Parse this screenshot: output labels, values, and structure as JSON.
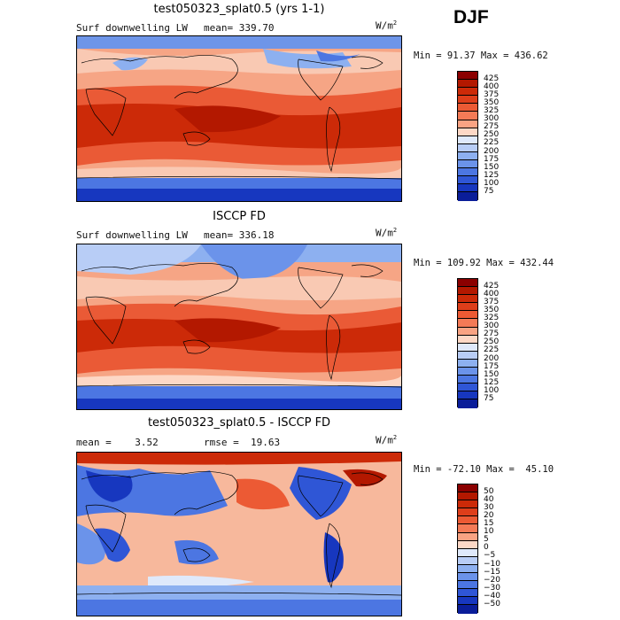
{
  "season": "DJF",
  "panels": [
    {
      "title": "test050323_splat0.5 (yrs 1-1)",
      "variable": "Surf downwelling LW",
      "stat1": "mean= 339.70",
      "stat2": "",
      "units": "W/m",
      "units_sup": "2",
      "minmax": "Min =  91.37 Max = 436.62",
      "levels": [
        "425",
        "400",
        "375",
        "350",
        "325",
        "300",
        "275",
        "250",
        "225",
        "200",
        "175",
        "150",
        "125",
        "100",
        "75"
      ],
      "colors": [
        "#8b0000",
        "#b31800",
        "#cc2a08",
        "#de3e1a",
        "#ec5a34",
        "#f47a56",
        "#f9a383",
        "#fdd8c6",
        "#dfe9fb",
        "#b8cdf6",
        "#8db0f0",
        "#6b93ea",
        "#4c76e2",
        "#2f56d6",
        "#1737bf",
        "#0a1d99"
      ]
    },
    {
      "title": "ISCCP FD",
      "variable": "Surf downwelling LW",
      "stat1": "mean= 336.18",
      "stat2": "",
      "units": "W/m",
      "units_sup": "2",
      "minmax": "Min = 109.92 Max = 432.44",
      "levels": [
        "425",
        "400",
        "375",
        "350",
        "325",
        "300",
        "275",
        "250",
        "225",
        "200",
        "175",
        "150",
        "125",
        "100",
        "75"
      ],
      "colors": [
        "#8b0000",
        "#b31800",
        "#cc2a08",
        "#de3e1a",
        "#ec5a34",
        "#f47a56",
        "#f9a383",
        "#fdd8c6",
        "#dfe9fb",
        "#b8cdf6",
        "#8db0f0",
        "#6b93ea",
        "#4c76e2",
        "#2f56d6",
        "#1737bf",
        "#0a1d99"
      ]
    },
    {
      "title": "test050323_splat0.5 - ISCCP FD",
      "variable": "",
      "stat1": "mean =    3.52",
      "stat2": "rmse =  19.63",
      "units": "W/m",
      "units_sup": "2",
      "minmax": "Min = -72.10 Max =  45.10",
      "levels": [
        "50",
        "40",
        "30",
        "20",
        "15",
        "10",
        "5",
        "0",
        "−5",
        "−10",
        "−15",
        "−20",
        "−30",
        "−40",
        "−50"
      ],
      "colors": [
        "#8b0000",
        "#b31800",
        "#cc2a08",
        "#de3e1a",
        "#ec5a34",
        "#f47a56",
        "#f9a383",
        "#fdd8c6",
        "#dfe9fb",
        "#b8cdf6",
        "#8db0f0",
        "#6b93ea",
        "#4c76e2",
        "#2f56d6",
        "#1737bf",
        "#0a1d99"
      ]
    }
  ]
}
